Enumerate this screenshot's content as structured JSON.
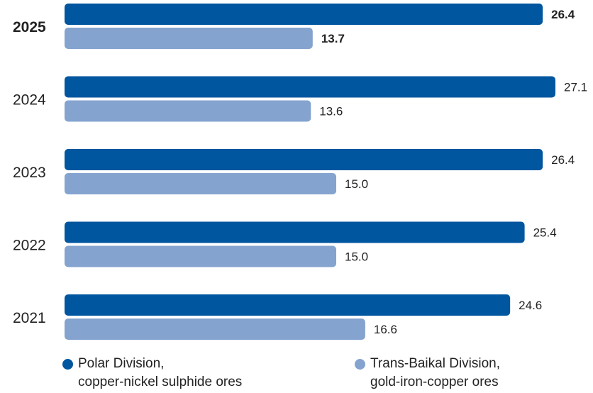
{
  "chart_data": {
    "type": "bar",
    "orientation": "horizontal",
    "categories": [
      "2025",
      "2024",
      "2023",
      "2022",
      "2021"
    ],
    "highlight_category": "2025",
    "series": [
      {
        "name_lines": [
          "Polar Division,",
          "copper-nickel sulphide ores"
        ],
        "color": "#00569F",
        "values": [
          26.4,
          27.1,
          26.4,
          25.4,
          24.6
        ],
        "labels": [
          "26.4",
          "27.1",
          "26.4",
          "25.4",
          "24.6"
        ]
      },
      {
        "name_lines": [
          "Trans-Baikal Division,",
          "gold-iron-copper ores"
        ],
        "color": "#84A3CF",
        "values": [
          13.7,
          13.6,
          15.0,
          15.0,
          16.6
        ],
        "labels": [
          "13.7",
          "13.6",
          "15.0",
          "15.0",
          "16.6"
        ]
      }
    ],
    "xlim": [
      0,
      27.1
    ],
    "grid": false,
    "legend_position": "bottom"
  }
}
